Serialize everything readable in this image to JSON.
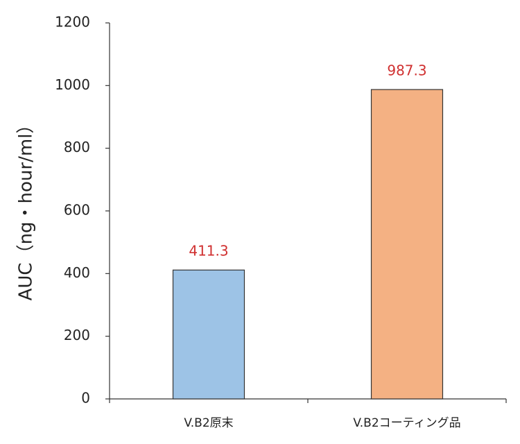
{
  "chart_data": {
    "type": "bar",
    "y_label": "AUC（ng・hour/ml）",
    "categories": [
      "V.B2原末",
      "V.B2コーティング品"
    ],
    "values": [
      411.3,
      987.3
    ],
    "colors": [
      "#9dc3e6",
      "#f4b183"
    ],
    "value_label_color": "#d03030",
    "ylim": [
      0,
      1200
    ],
    "yticks": [
      0,
      200,
      400,
      600,
      800,
      1000,
      1200
    ],
    "grid": false
  }
}
